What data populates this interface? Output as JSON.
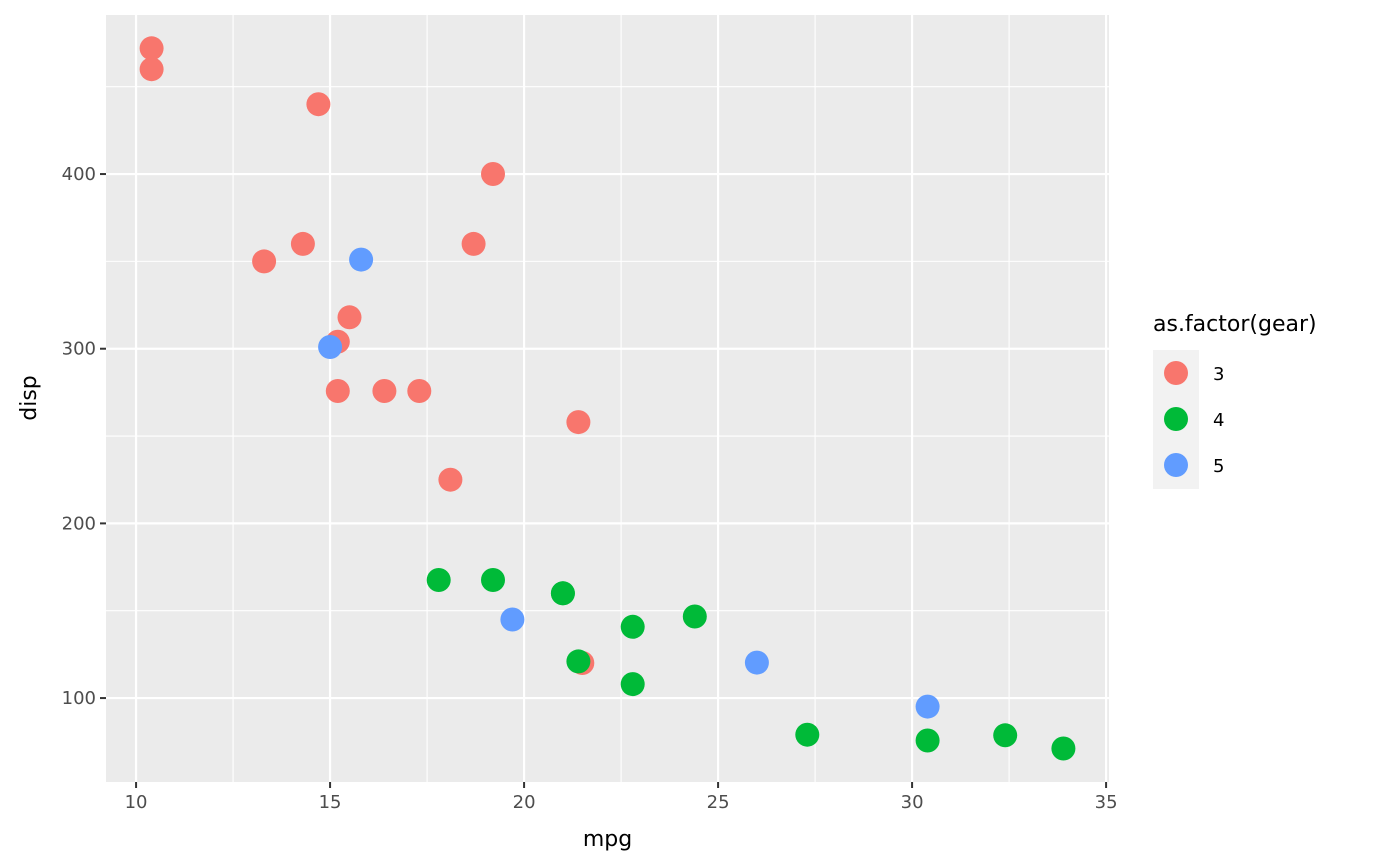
{
  "chart_data": {
    "type": "scatter",
    "xlabel": "mpg",
    "ylabel": "disp",
    "xlim": [
      9.225,
      35.075
    ],
    "ylim": [
      51.945,
      491.055
    ],
    "x_ticks": [
      10,
      15,
      20,
      25,
      30,
      35
    ],
    "y_ticks": [
      100,
      200,
      300,
      400
    ],
    "x_minor": [
      12.5,
      17.5,
      22.5,
      27.5,
      32.5
    ],
    "y_minor": [
      50,
      150,
      250,
      350,
      450
    ],
    "grid": true,
    "legend_position": "right",
    "legend": {
      "title": "as.factor(gear)",
      "entries": [
        {
          "label": "3",
          "color": "#F8766D"
        },
        {
          "label": "4",
          "color": "#00BA38"
        },
        {
          "label": "5",
          "color": "#619CFF"
        }
      ]
    },
    "colors": {
      "panel_background": "#EBEBEB",
      "grid": "#FFFFFF",
      "tick_text": "#4D4D4D"
    },
    "series": [
      {
        "name": "3",
        "color": "#F8766D",
        "points": [
          [
            21.4,
            258
          ],
          [
            18.7,
            360
          ],
          [
            18.1,
            225
          ],
          [
            14.3,
            360
          ],
          [
            16.4,
            275.8
          ],
          [
            17.3,
            275.8
          ],
          [
            15.2,
            275.8
          ],
          [
            10.4,
            472
          ],
          [
            10.4,
            460
          ],
          [
            14.7,
            440
          ],
          [
            21.5,
            120.1
          ],
          [
            15.5,
            318
          ],
          [
            15.2,
            304
          ],
          [
            13.3,
            350
          ],
          [
            19.2,
            400
          ]
        ]
      },
      {
        "name": "4",
        "color": "#00BA38",
        "points": [
          [
            21.0,
            160
          ],
          [
            21.0,
            160
          ],
          [
            22.8,
            108
          ],
          [
            24.4,
            146.7
          ],
          [
            22.8,
            140.8
          ],
          [
            19.2,
            167.6
          ],
          [
            17.8,
            167.6
          ],
          [
            32.4,
            78.7
          ],
          [
            30.4,
            75.7
          ],
          [
            33.9,
            71.1
          ],
          [
            27.3,
            79
          ],
          [
            21.4,
            121
          ]
        ]
      },
      {
        "name": "5",
        "color": "#619CFF",
        "points": [
          [
            26.0,
            120.3
          ],
          [
            30.4,
            95.1
          ],
          [
            15.8,
            351
          ],
          [
            19.7,
            145
          ],
          [
            15.0,
            301
          ]
        ]
      }
    ]
  }
}
